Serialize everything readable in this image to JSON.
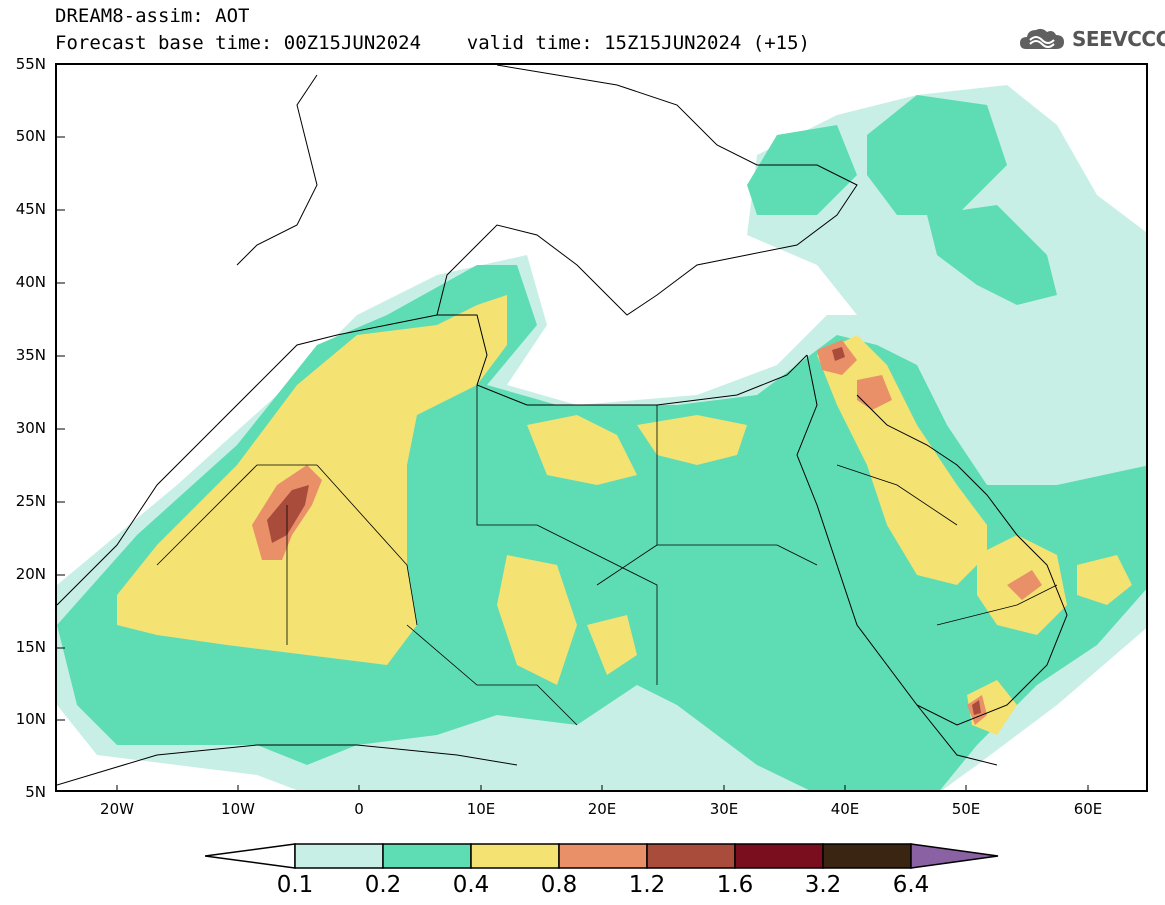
{
  "header": {
    "title_line1": "DREAM8-assim: AOT",
    "title_line2": "Forecast base time: 00Z15JUN2024    valid time: 15Z15JUN2024 (+15)",
    "logo_text": "SEEVCCC"
  },
  "axes": {
    "lat_labels": [
      "55N",
      "50N",
      "45N",
      "40N",
      "35N",
      "30N",
      "25N",
      "20N",
      "15N",
      "10N",
      "5N"
    ],
    "lon_labels": [
      "20W",
      "10W",
      "0",
      "10E",
      "20E",
      "30E",
      "40E",
      "50E",
      "60E"
    ],
    "lat_range": [
      5,
      55
    ],
    "lon_range": [
      -25,
      65
    ]
  },
  "colorbar": {
    "colors": [
      "#c8efe6",
      "#5edcb4",
      "#f4e273",
      "#ea9068",
      "#a94c3c",
      "#7a0d1e",
      "#3a2412",
      "#8a62a4"
    ],
    "labels": [
      "0.1",
      "0.2",
      "0.4",
      "0.8",
      "1.2",
      "1.6",
      "3.2",
      "6.4"
    ]
  },
  "legend_colors": {
    "lowest": "#c8efe6",
    "low": "#5edcb4",
    "mid": "#f4e273",
    "high": "#ea9068",
    "very_high": "#a94c3c"
  }
}
